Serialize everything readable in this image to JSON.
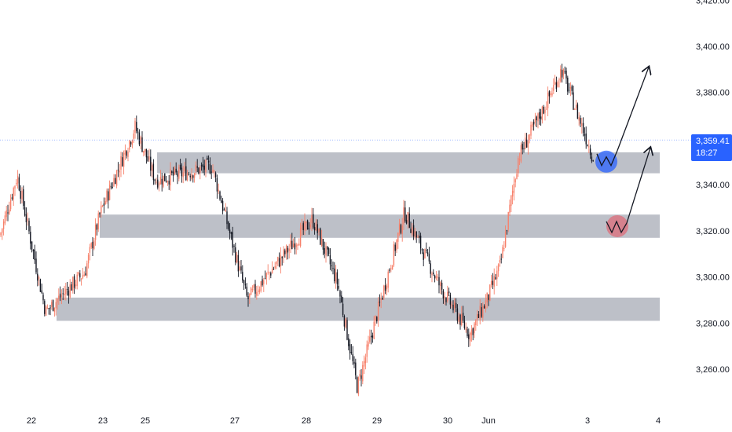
{
  "colors": {
    "up": "#f7816b",
    "down": "#131722",
    "zone": "#b2b5be",
    "blue_marker": "#2962ff",
    "red_marker": "#f23645",
    "price_line": "#2962ff",
    "arrow": "#131722"
  },
  "chart_data": {
    "type": "candlestick",
    "title": "",
    "y_ticks": [
      "3,420.00",
      "3,400.00",
      "3,380.00",
      "3,360.00",
      "3,340.00",
      "3,320.00",
      "3,300.00",
      "3,280.00",
      "3,260.00"
    ],
    "y_tick_values": [
      3420,
      3400,
      3380,
      3360,
      3340,
      3320,
      3300,
      3280,
      3260
    ],
    "ylim": [
      3246,
      3422
    ],
    "x_ticks": [
      "22",
      "23",
      "25",
      "27",
      "28",
      "29",
      "30",
      "Jun",
      "3",
      "4"
    ],
    "current_price": "3,359.41",
    "countdown": "18:27",
    "price_path": [
      {
        "x": "22",
        "price": 3318
      },
      {
        "x": "22",
        "price": 3344
      },
      {
        "x": "22",
        "price": 3285
      },
      {
        "x": "23",
        "price": 3302
      },
      {
        "x": "23",
        "price": 3328
      },
      {
        "x": "25",
        "price": 3365
      },
      {
        "x": "25",
        "price": 3342
      },
      {
        "x": "27",
        "price": 3348
      },
      {
        "x": "27",
        "price": 3290
      },
      {
        "x": "28",
        "price": 3325
      },
      {
        "x": "28",
        "price": 3297
      },
      {
        "x": "29",
        "price": 3252
      },
      {
        "x": "29",
        "price": 3328
      },
      {
        "x": "30",
        "price": 3296
      },
      {
        "x": "30",
        "price": 3275
      },
      {
        "x": "Jun",
        "price": 3290
      },
      {
        "x": "Jun",
        "price": 3305
      },
      {
        "x": "Jun",
        "price": 3352
      },
      {
        "x": "Jun",
        "price": 3375
      },
      {
        "x": "3",
        "price": 3390
      },
      {
        "x": "3",
        "price": 3352
      }
    ],
    "zones": [
      {
        "from": 3347,
        "to": 3352
      },
      {
        "from": 3319,
        "to": 3325
      },
      {
        "from": 3283,
        "to": 3289
      }
    ],
    "annotations": [
      {
        "type": "circle",
        "color": "blue",
        "price": 3350,
        "x": "3"
      },
      {
        "type": "circle",
        "color": "red",
        "price": 3322,
        "x": "3"
      },
      {
        "type": "arrow",
        "from_price": 3350,
        "to_price": 3391
      },
      {
        "type": "arrow",
        "from_price": 3322,
        "to_price": 3356
      }
    ]
  }
}
